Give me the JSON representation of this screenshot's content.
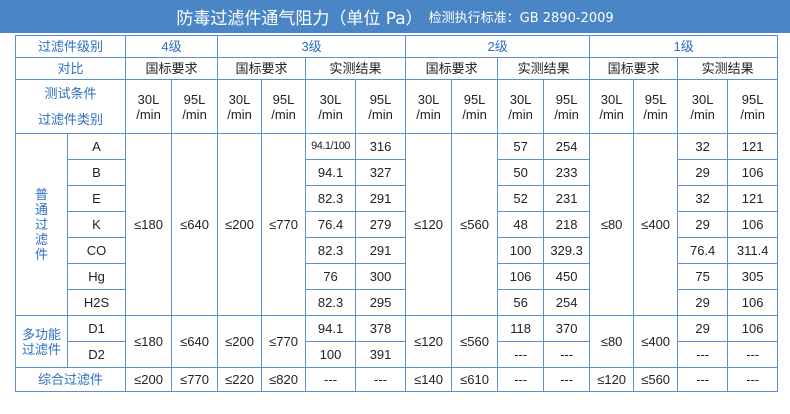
{
  "title": {
    "main": "防毒过滤件通气阻力（单位 Pa）",
    "standard": "检测执行标准：GB 2890-2009"
  },
  "header": {
    "grade_label": "过滤件级别",
    "grades": [
      "4级",
      "3级",
      "2级",
      "1级"
    ],
    "contrast_label": "对比",
    "national": "国标要求",
    "measured": "实测结果",
    "cond_label": "测试条件",
    "type_label": "过滤件类别",
    "flow30": "30L\n/min",
    "flow95": "95L\n/min"
  },
  "groups": {
    "general": "普\n通\n过\n滤\n件",
    "multi": "多功能\n过滤件",
    "total": "综合过滤件"
  },
  "rows": [
    {
      "type": "A",
      "g3a": "94.1/100",
      "g3b": "316",
      "g2a": "57",
      "g2b": "254",
      "g1a": "32",
      "g1b": "121"
    },
    {
      "type": "B",
      "g3a": "94.1",
      "g3b": "327",
      "g2a": "50",
      "g2b": "233",
      "g1a": "29",
      "g1b": "106"
    },
    {
      "type": "E",
      "g3a": "82.3",
      "g3b": "291",
      "g2a": "52",
      "g2b": "231",
      "g1a": "32",
      "g1b": "121"
    },
    {
      "type": "K",
      "g3a": "76.4",
      "g3b": "279",
      "g2a": "48",
      "g2b": "218",
      "g1a": "29",
      "g1b": "106"
    },
    {
      "type": "CO",
      "g3a": "82.3",
      "g3b": "291",
      "g2a": "100",
      "g2b": "329.3",
      "g1a": "76.4",
      "g1b": "311.4"
    },
    {
      "type": "Hg",
      "g3a": "76",
      "g3b": "300",
      "g2a": "106",
      "g2b": "450",
      "g1a": "75",
      "g1b": "305"
    },
    {
      "type": "H2S",
      "g3a": "82.3",
      "g3b": "295",
      "g2a": "56",
      "g2b": "254",
      "g1a": "29",
      "g1b": "106"
    }
  ],
  "general_std": {
    "g4a": "≤180",
    "g4b": "≤640",
    "g3a": "≤200",
    "g3b": "≤770",
    "g2a": "≤120",
    "g2b": "≤560",
    "g1a": "≤80",
    "g1b": "≤400"
  },
  "multi_rows": [
    {
      "type": "D1",
      "g3a": "94.1",
      "g3b": "378",
      "g2a": "118",
      "g2b": "370",
      "g1a": "29",
      "g1b": "106"
    },
    {
      "type": "D2",
      "g3a": "100",
      "g3b": "391",
      "g2a": "---",
      "g2b": "---",
      "g1a": "---",
      "g1b": "---"
    }
  ],
  "multi_std": {
    "g4a": "≤180",
    "g4b": "≤640",
    "g3a": "≤200",
    "g3b": "≤770",
    "g2a": "≤120",
    "g2b": "≤560",
    "g1a": "≤80",
    "g1b": "≤400"
  },
  "total_row": {
    "g4a": "≤200",
    "g4b": "≤770",
    "g3a": "≤220",
    "g3b": "≤820",
    "g3c": "---",
    "g3d": "---",
    "g2a": "≤140",
    "g2b": "≤610",
    "g2c": "---",
    "g2d": "---",
    "g1a": "≤120",
    "g1b": "≤560",
    "g1c": "---",
    "g1d": "---"
  },
  "colors": {
    "title_bg": "#4a86c6",
    "border": "#5b8fcf",
    "label": "#2e6fbf"
  }
}
